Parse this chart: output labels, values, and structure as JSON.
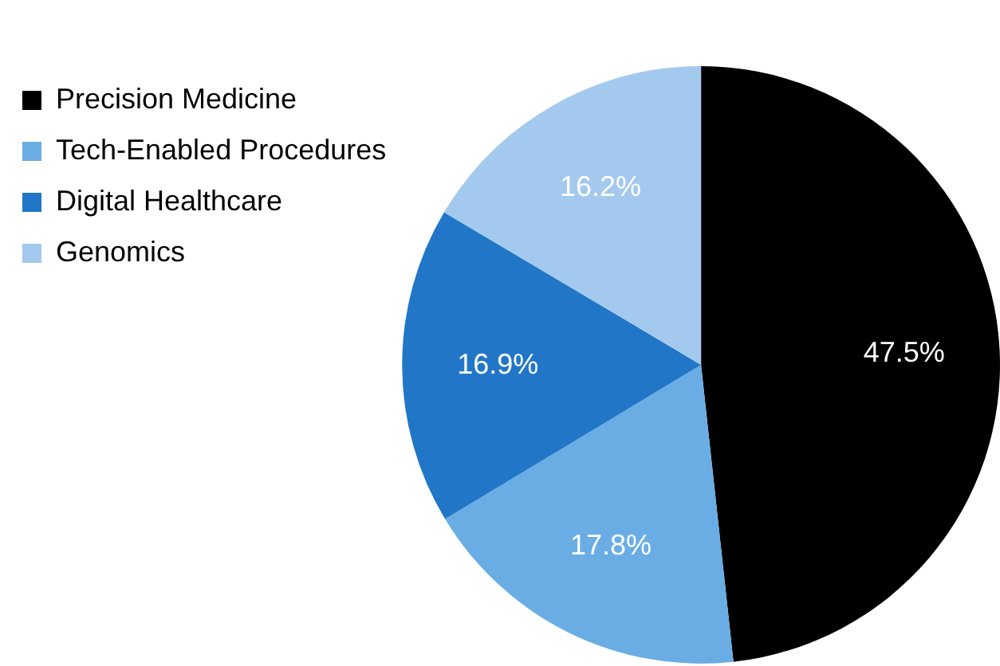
{
  "chart_data": {
    "type": "pie",
    "categories": [
      "Precision Medicine",
      "Tech-Enabled Procedures",
      "Digital Healthcare",
      "Genomics"
    ],
    "values": [
      47.5,
      17.8,
      16.9,
      16.2
    ],
    "colors": [
      "#000000",
      "#6aade4",
      "#2176c7",
      "#a3c9ef"
    ],
    "value_labels": [
      "47.5%",
      "17.8%",
      "16.9%",
      "16.2%"
    ],
    "legend": "top left"
  }
}
